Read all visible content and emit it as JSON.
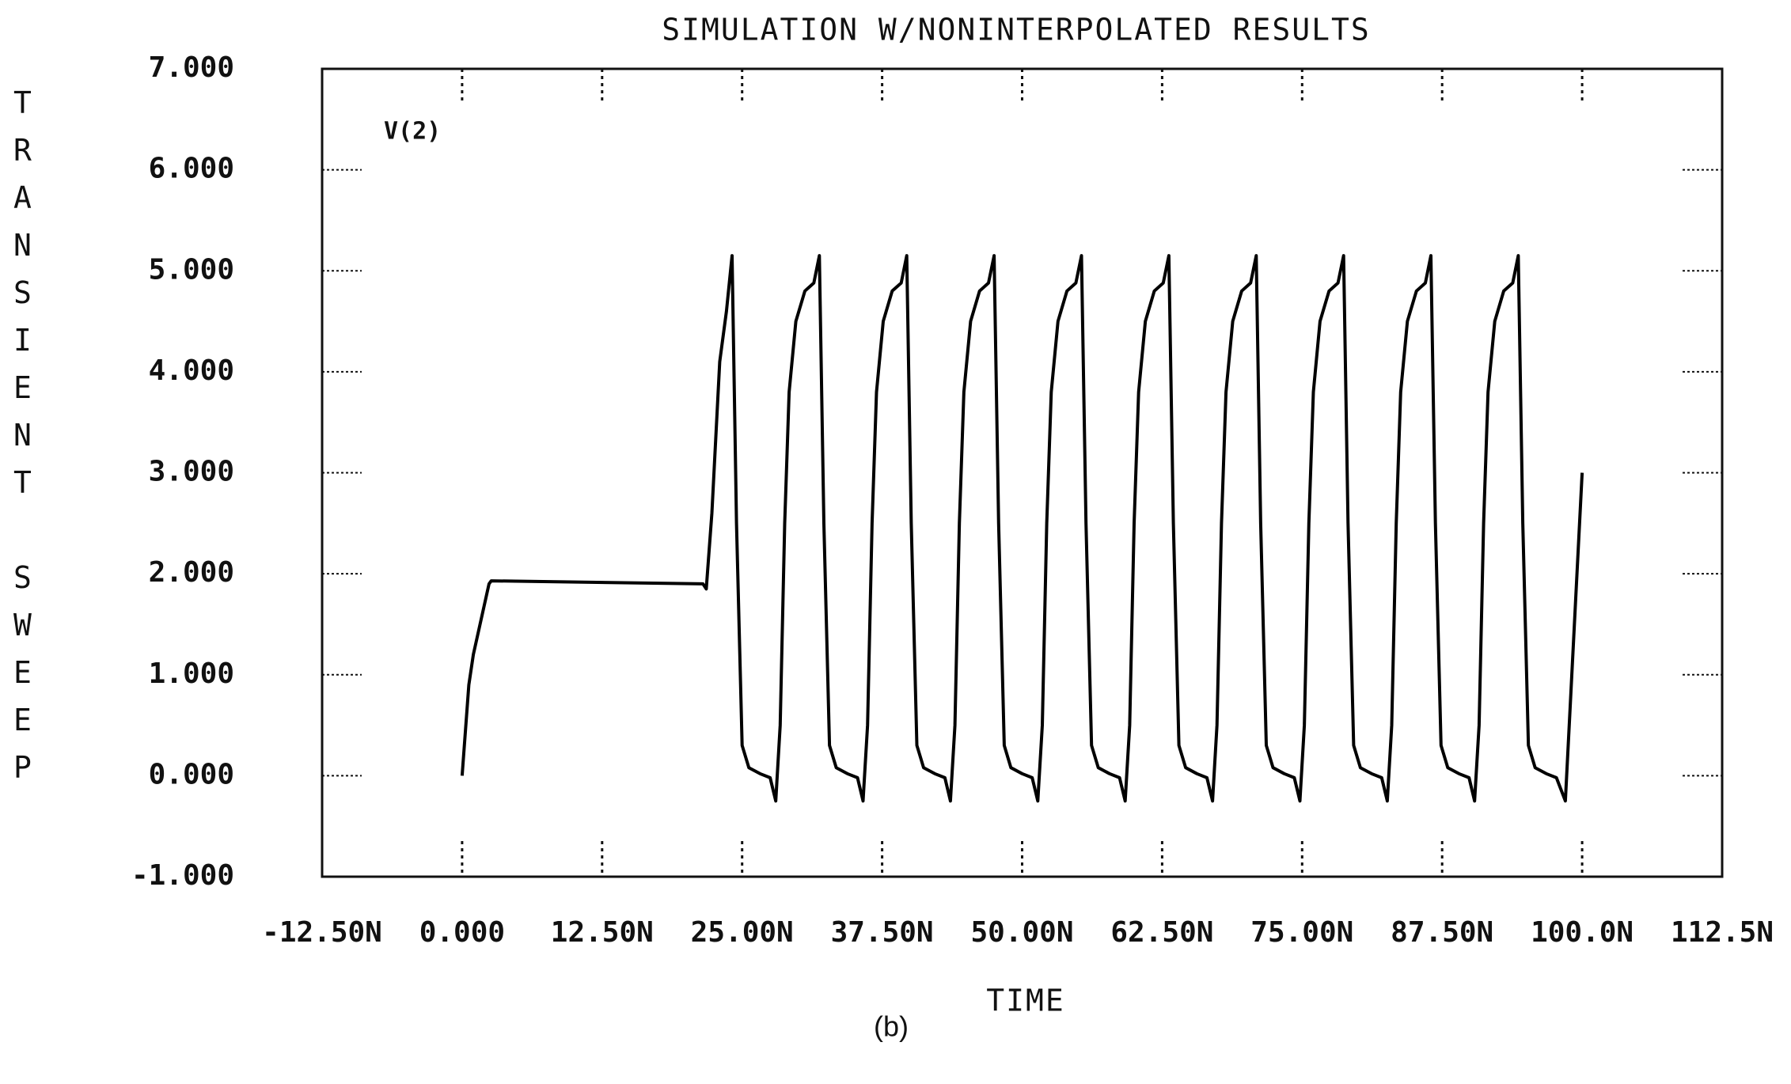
{
  "chart_data": {
    "type": "line",
    "title": "SIMULATION W/NONINTERPOLATED RESULTS",
    "x_label": "TIME",
    "y_label": "TRANSIENT SWEEP",
    "caption": "(b)",
    "legend": "top-left",
    "xlim": [
      -12.5,
      112.5
    ],
    "ylim": [
      -1,
      7
    ],
    "xticks": [
      {
        "value": -12.5,
        "label": "-12.50N"
      },
      {
        "value": 0,
        "label": "0.000"
      },
      {
        "value": 12.5,
        "label": "12.50N"
      },
      {
        "value": 25,
        "label": "25.00N"
      },
      {
        "value": 37.5,
        "label": "37.50N"
      },
      {
        "value": 50,
        "label": "50.00N"
      },
      {
        "value": 62.5,
        "label": "62.50N"
      },
      {
        "value": 75,
        "label": "75.00N"
      },
      {
        "value": 87.5,
        "label": "87.50N"
      },
      {
        "value": 100,
        "label": "100.0N"
      },
      {
        "value": 112.5,
        "label": "112.5N"
      }
    ],
    "yticks": [
      {
        "value": -1,
        "label": "-1.000"
      },
      {
        "value": 0,
        "label": "0.000"
      },
      {
        "value": 1,
        "label": "1.000"
      },
      {
        "value": 2,
        "label": "2.000"
      },
      {
        "value": 3,
        "label": "3.000"
      },
      {
        "value": 4,
        "label": "4.000"
      },
      {
        "value": 5,
        "label": "5.000"
      },
      {
        "value": 6,
        "label": "6.000"
      },
      {
        "value": 7,
        "label": "7.000"
      }
    ],
    "x": [
      0,
      0.6,
      1.0,
      2.4,
      2.6,
      21.5,
      21.8,
      22.3,
      23.0,
      23.6,
      24.1,
      24.5,
      25.0,
      25.6,
      26.6,
      27.5,
      28.0,
      28.4,
      28.8,
      29.2,
      29.8,
      30.6,
      31.4,
      31.9,
      32.3,
      32.8,
      33.4,
      34.4,
      35.3,
      35.8,
      36.2,
      36.6,
      37.0,
      37.6,
      38.4,
      39.2,
      39.7,
      40.1,
      40.6,
      41.2,
      42.2,
      43.1,
      43.6,
      44.0,
      44.4,
      44.8,
      45.4,
      46.2,
      47.0,
      47.5,
      47.9,
      48.4,
      49.0,
      50.0,
      50.9,
      51.4,
      51.8,
      52.2,
      52.6,
      53.2,
      54.0,
      54.8,
      55.3,
      55.7,
      56.2,
      56.8,
      57.8,
      58.7,
      59.2,
      59.6,
      60.0,
      60.4,
      61.0,
      61.8,
      62.6,
      63.1,
      63.5,
      64.0,
      64.6,
      65.6,
      66.5,
      67.0,
      67.4,
      67.8,
      68.2,
      68.8,
      69.6,
      70.4,
      70.9,
      71.3,
      71.8,
      72.4,
      73.4,
      74.3,
      74.8,
      75.2,
      75.6,
      76.0,
      76.6,
      77.4,
      78.2,
      78.7,
      79.1,
      79.6,
      80.2,
      81.2,
      82.1,
      82.6,
      83.0,
      83.4,
      83.8,
      84.4,
      85.2,
      86.0,
      86.5,
      86.9,
      87.4,
      88.0,
      89.0,
      89.9,
      90.4,
      90.8,
      91.2,
      91.6,
      92.2,
      93.0,
      93.8,
      94.3,
      94.7,
      95.2,
      95.8,
      96.8,
      97.7,
      98.5,
      100.0
    ],
    "series": [
      {
        "name": "V(2)",
        "color": "#000000",
        "values": [
          0,
          0.9,
          1.2,
          1.9,
          1.93,
          1.9,
          1.85,
          2.6,
          4.1,
          4.6,
          5.15,
          2.5,
          0.3,
          0.08,
          0.02,
          -0.02,
          -0.25,
          0.5,
          2.5,
          3.8,
          4.5,
          4.8,
          4.88,
          5.15,
          2.5,
          0.3,
          0.08,
          0.02,
          -0.02,
          -0.25,
          0.5,
          2.5,
          3.8,
          4.5,
          4.8,
          4.88,
          5.15,
          2.5,
          0.3,
          0.08,
          0.02,
          -0.02,
          -0.25,
          0.5,
          2.5,
          3.8,
          4.5,
          4.8,
          4.88,
          5.15,
          2.5,
          0.3,
          0.08,
          0.02,
          -0.02,
          -0.25,
          0.5,
          2.5,
          3.8,
          4.5,
          4.8,
          4.88,
          5.15,
          2.5,
          0.3,
          0.08,
          0.02,
          -0.02,
          -0.25,
          0.5,
          2.5,
          3.8,
          4.5,
          4.8,
          4.88,
          5.15,
          2.5,
          0.3,
          0.08,
          0.02,
          -0.02,
          -0.25,
          0.5,
          2.5,
          3.8,
          4.5,
          4.8,
          4.88,
          5.15,
          2.5,
          0.3,
          0.08,
          0.02,
          -0.02,
          -0.25,
          0.5,
          2.5,
          3.8,
          4.5,
          4.8,
          4.88,
          5.15,
          2.5,
          0.3,
          0.08,
          0.02,
          -0.02,
          -0.25,
          0.5,
          2.5,
          3.8,
          4.5,
          4.8,
          4.88,
          5.15,
          2.5,
          0.3,
          0.08,
          0.02,
          -0.02,
          -0.25,
          0.5,
          2.5,
          3.8,
          4.5,
          4.8,
          4.88,
          5.15,
          2.5,
          0.3,
          0.08,
          0.02,
          -0.02,
          -0.25,
          3.0
        ]
      }
    ]
  }
}
